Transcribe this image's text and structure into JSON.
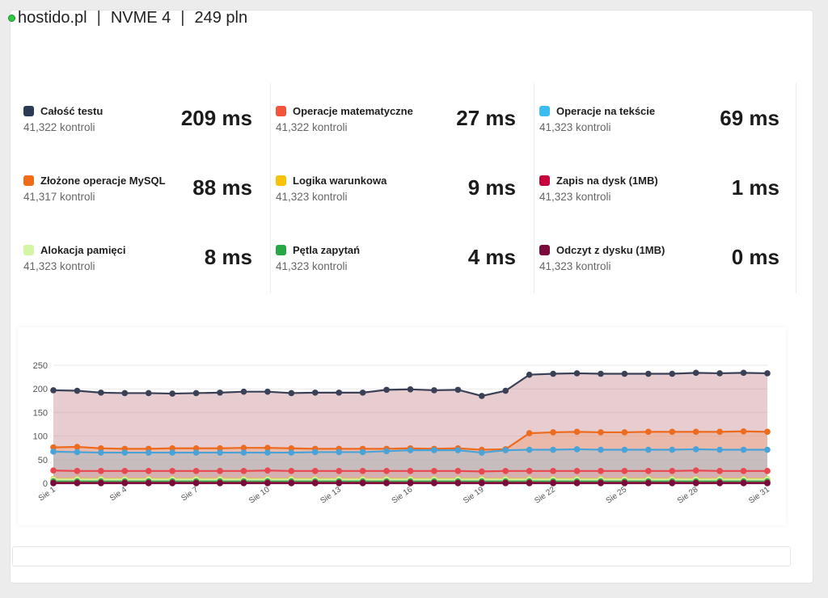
{
  "header": {
    "brand": "hostido.pl",
    "separator": "|",
    "plan": "NVME 4",
    "price": "249 pln"
  },
  "stats": [
    {
      "name": "Całość testu",
      "checks": "41,322 kontroli",
      "value": "209 ms",
      "color": "#2b3a55"
    },
    {
      "name": "Operacje matematyczne",
      "checks": "41,322 kontroli",
      "value": "27 ms",
      "color": "#f2543d"
    },
    {
      "name": "Operacje na tekście",
      "checks": "41,323 kontroli",
      "value": "69 ms",
      "color": "#3bbdf0"
    },
    {
      "name": "Złożone operacje MySQL",
      "checks": "41,317 kontroli",
      "value": "88 ms",
      "color": "#f06c16"
    },
    {
      "name": "Logika warunkowa",
      "checks": "41,323 kontroli",
      "value": "9 ms",
      "color": "#f8c20a"
    },
    {
      "name": "Zapis na dysk (1MB)",
      "checks": "41,323 kontroli",
      "value": "1 ms",
      "color": "#c8003c"
    },
    {
      "name": "Alokacja pamięci",
      "checks": "41,323 kontroli",
      "value": "8 ms",
      "color": "#d4f5a3"
    },
    {
      "name": "Pętla zapytań",
      "checks": "41,323 kontroli",
      "value": "4 ms",
      "color": "#27a844"
    },
    {
      "name": "Odczyt z dysku (1MB)",
      "checks": "41,323 kontroli",
      "value": "0 ms",
      "color": "#7b0a3c"
    }
  ],
  "chart_data": {
    "type": "area",
    "ylim": [
      0,
      250
    ],
    "yticks": [
      0,
      50,
      100,
      150,
      200,
      250
    ],
    "x": [
      "Sie 1",
      "Sie 2",
      "Sie 3",
      "Sie 4",
      "Sie 5",
      "Sie 6",
      "Sie 7",
      "Sie 8",
      "Sie 9",
      "Sie 10",
      "Sie 11",
      "Sie 12",
      "Sie 13",
      "Sie 14",
      "Sie 15",
      "Sie 16",
      "Sie 17",
      "Sie 18",
      "Sie 19",
      "Sie 20",
      "Sie 21",
      "Sie 22",
      "Sie 23",
      "Sie 24",
      "Sie 25",
      "Sie 26",
      "Sie 27",
      "Sie 28",
      "Sie 29",
      "Sie 30",
      "Sie 31"
    ],
    "xtick_labels": [
      "Sie 1",
      "Sie 4",
      "Sie 7",
      "Sie 10",
      "Sie 13",
      "Sie 16",
      "Sie 19",
      "Sie 22",
      "Sie 25",
      "Sie 28",
      "Sie 31"
    ],
    "grid": true,
    "series": [
      {
        "color": "#3a4157",
        "fill": "#c98f96",
        "values": [
          197,
          196,
          192,
          191,
          191,
          190,
          191,
          192,
          194,
          194,
          191,
          192,
          192,
          192,
          198,
          199,
          197,
          198,
          185,
          196,
          230,
          232,
          233,
          232,
          232,
          232,
          232,
          234,
          233,
          234,
          233
        ]
      },
      {
        "color": "#ed6b1e",
        "fill": "#f0a27a",
        "values": [
          76,
          77,
          74,
          73,
          73,
          74,
          74,
          74,
          75,
          75,
          74,
          73,
          73,
          73,
          73,
          74,
          73,
          74,
          71,
          72,
          106,
          108,
          109,
          108,
          108,
          109,
          109,
          109,
          109,
          110,
          109
        ]
      },
      {
        "color": "#4aa3d8",
        "fill": "#9cc1d6",
        "values": [
          67,
          66,
          65,
          65,
          65,
          65,
          65,
          65,
          65,
          65,
          65,
          66,
          66,
          66,
          68,
          70,
          70,
          70,
          65,
          70,
          71,
          71,
          72,
          71,
          71,
          71,
          71,
          72,
          71,
          71,
          71
        ]
      },
      {
        "color": "#e8474f",
        "fill": "#e9a0a0",
        "values": [
          27,
          26,
          26,
          26,
          26,
          26,
          26,
          26,
          26,
          27,
          26,
          26,
          26,
          26,
          26,
          26,
          26,
          26,
          25,
          26,
          26,
          26,
          26,
          26,
          26,
          26,
          26,
          27,
          26,
          26,
          26
        ]
      },
      {
        "color": "#f2c50f",
        "fill": "#f4dd8c",
        "values": [
          9,
          9,
          9,
          9,
          9,
          9,
          9,
          9,
          9,
          9,
          9,
          9,
          9,
          9,
          9,
          9,
          9,
          9,
          9,
          9,
          9,
          9,
          9,
          9,
          9,
          9,
          9,
          9,
          9,
          9,
          9
        ]
      },
      {
        "color": "#ccf0a0",
        "fill": "#dff3c7",
        "values": [
          8,
          8,
          8,
          8,
          8,
          8,
          8,
          8,
          8,
          8,
          8,
          8,
          8,
          8,
          8,
          8,
          8,
          8,
          8,
          8,
          8,
          8,
          8,
          8,
          8,
          8,
          8,
          8,
          8,
          8,
          8
        ]
      },
      {
        "color": "#30a84c",
        "fill": "#8fd19e",
        "values": [
          4,
          4,
          4,
          4,
          4,
          4,
          4,
          4,
          4,
          4,
          4,
          4,
          4,
          4,
          4,
          4,
          4,
          4,
          4,
          4,
          4,
          4,
          4,
          4,
          4,
          4,
          4,
          4,
          4,
          4,
          4
        ]
      },
      {
        "color": "#c8003c",
        "fill": "#e07090",
        "values": [
          1,
          1,
          1,
          1,
          1,
          1,
          1,
          1,
          1,
          1,
          1,
          1,
          1,
          1,
          1,
          1,
          1,
          1,
          1,
          1,
          1,
          1,
          1,
          1,
          1,
          1,
          1,
          1,
          1,
          1,
          1
        ]
      },
      {
        "color": "#7b0a3c",
        "fill": "#b06080",
        "values": [
          0,
          0,
          0,
          0,
          0,
          0,
          0,
          0,
          0,
          0,
          0,
          0,
          0,
          0,
          0,
          0,
          0,
          0,
          0,
          0,
          0,
          0,
          0,
          0,
          0,
          0,
          0,
          0,
          0,
          0,
          0
        ]
      }
    ]
  }
}
